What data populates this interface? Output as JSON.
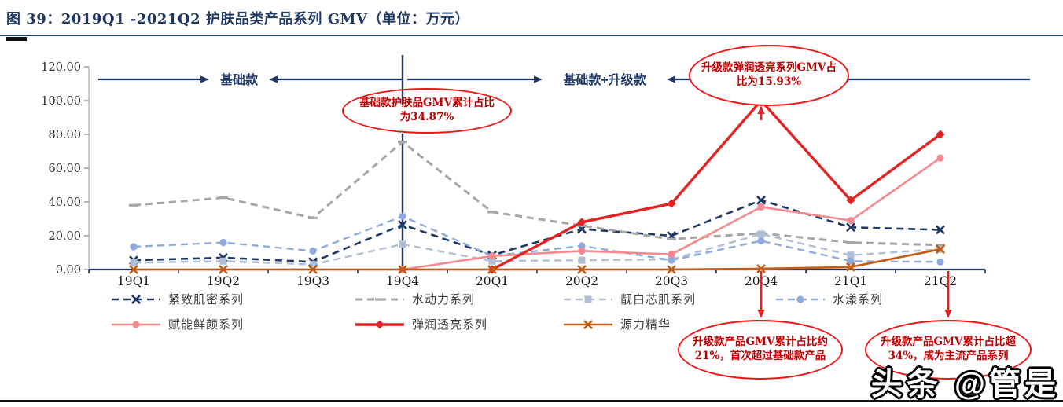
{
  "figure": {
    "title": "图 39：2019Q1 -2021Q2 护肤品类产品系列 GMV（单位：万元）",
    "watermark": "头条 @管是"
  },
  "chart_data": {
    "type": "line",
    "title": "2019Q1-2021Q2 护肤品类产品系列GMV",
    "unit": "万元",
    "categories": [
      "19Q1",
      "19Q2",
      "19Q3",
      "19Q4",
      "20Q1",
      "20Q2",
      "20Q3",
      "20Q4",
      "21Q1",
      "21Q2"
    ],
    "y_axis": {
      "min": 0,
      "max": 120,
      "step": 20,
      "tick_labels": [
        "0.00",
        "20.00",
        "40.00",
        "60.00",
        "80.00",
        "100.00",
        "120.00"
      ]
    },
    "grid": "off",
    "legend_position": "bottom",
    "series": [
      {
        "name": "紧致肌密系列",
        "color": "#1f3864",
        "line": "dashed",
        "marker": "x",
        "width": 2.6,
        "values": [
          5.5,
          7,
          4.5,
          26.5,
          8.5,
          24,
          20,
          41,
          25,
          23.5
        ]
      },
      {
        "name": "水动力系列",
        "color": "#a6a6a6",
        "line": "dashed",
        "marker": "dash",
        "width": 3,
        "values": [
          38,
          42.5,
          30.5,
          75.5,
          34,
          26,
          18,
          21.5,
          16,
          14.5
        ]
      },
      {
        "name": "靓白芯肌系列",
        "color": "#b0bfd4",
        "line": "dashed",
        "marker": "square",
        "width": 2.4,
        "values": [
          4,
          5,
          3,
          15,
          5,
          5.5,
          6,
          21,
          8.5,
          12
        ]
      },
      {
        "name": "水漾系列",
        "color": "#8faadc",
        "line": "dashed",
        "marker": "circle",
        "width": 2.4,
        "values": [
          13.5,
          16,
          11,
          31.5,
          8,
          14,
          5.5,
          17,
          5,
          4.5
        ]
      },
      {
        "name": "赋能鲜颜系列",
        "color": "#f5898d",
        "line": "solid",
        "marker": "circle",
        "width": 2.6,
        "values": [
          null,
          null,
          null,
          0,
          8,
          11,
          9,
          37,
          29,
          66
        ]
      },
      {
        "name": "弹润透亮系列",
        "color": "#e32222",
        "line": "solid",
        "marker": "diamond",
        "width": 3.4,
        "values": [
          null,
          null,
          null,
          null,
          0,
          28,
          39,
          100,
          41,
          80
        ]
      },
      {
        "name": "源力精华",
        "color": "#c55a11",
        "line": "solid",
        "marker": "x",
        "width": 2.6,
        "values": [
          0,
          0,
          0,
          0,
          0,
          0,
          0,
          0.5,
          1.5,
          12
        ]
      }
    ],
    "phases": [
      {
        "label": "基础款",
        "from_category": "19Q1",
        "to_category": "19Q4"
      },
      {
        "label": "基础款+升级款",
        "from_category": "19Q4",
        "to_category": "21Q2"
      }
    ],
    "divider_category": "19Q4",
    "annotations": [
      {
        "id": "mid",
        "text": "基础款护肤品GMV累计占比为34.87%",
        "points_to": "19Q4"
      },
      {
        "id": "top",
        "text": "升级款弹润透亮系列GMV占比为15.93%",
        "points_to": "20Q4"
      },
      {
        "id": "bottom_left",
        "text": "升级款产品GMV累计占比约21%，首次超过基础款产品",
        "points_to": "20Q4"
      },
      {
        "id": "bottom_right",
        "text": "升级款产品GMV累计占比超34%，成为主流产品系列",
        "points_to": "21Q2"
      }
    ]
  }
}
